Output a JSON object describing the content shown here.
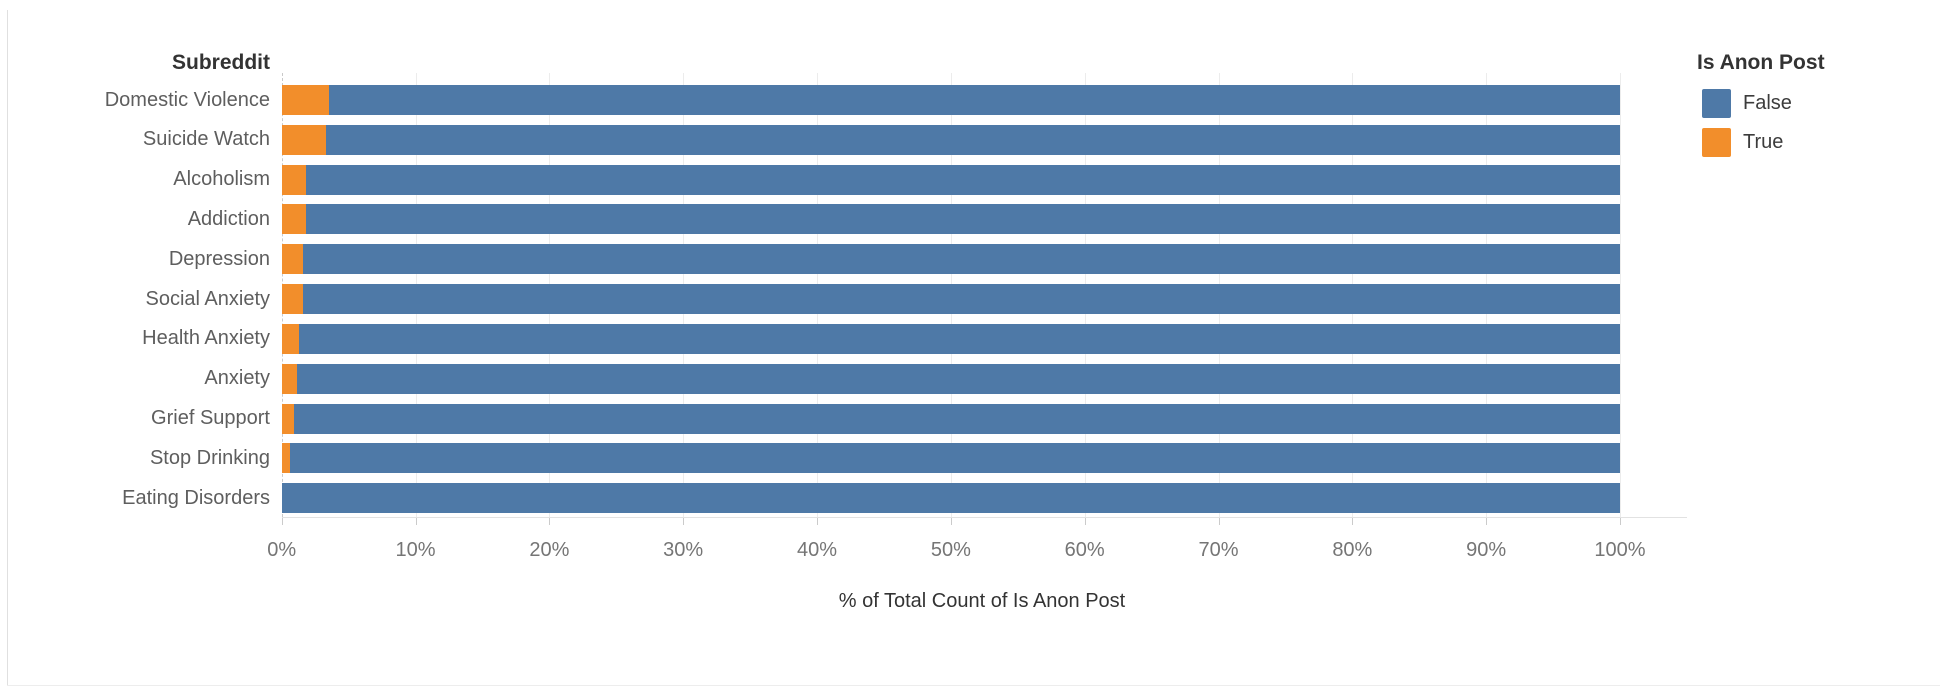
{
  "chart": {
    "header": "Subreddit",
    "axis_title": "% of Total Count of Is Anon Post",
    "x_ticks": [
      "0%",
      "10%",
      "20%",
      "30%",
      "40%",
      "50%",
      "60%",
      "70%",
      "80%",
      "90%",
      "100%"
    ],
    "legend": {
      "title": "Is Anon Post",
      "items": [
        {
          "label": "False",
          "color": "#4e79a7"
        },
        {
          "label": "True",
          "color": "#f28e2b"
        }
      ]
    },
    "background_color": "#ffffff"
  },
  "chart_data": {
    "type": "bar",
    "orientation": "horizontal",
    "stacked": true,
    "stack_order": [
      "True",
      "False"
    ],
    "title": "",
    "xlabel": "% of Total Count of Is Anon Post",
    "ylabel": "Subreddit",
    "xlim": [
      0,
      100
    ],
    "grid": true,
    "legend_position": "top-right",
    "categories": [
      "Domestic Violence",
      "Suicide Watch",
      "Alcoholism",
      "Addiction",
      "Depression",
      "Social Anxiety",
      "Health Anxiety",
      "Anxiety",
      "Grief Support",
      "Stop Drinking",
      "Eating Disorders"
    ],
    "series": [
      {
        "name": "True",
        "color": "#f28e2b",
        "values": [
          3.5,
          3.3,
          1.8,
          1.8,
          1.6,
          1.6,
          1.3,
          1.1,
          0.9,
          0.6,
          0.0
        ]
      },
      {
        "name": "False",
        "color": "#4e79a7",
        "values": [
          96.5,
          96.7,
          98.2,
          98.2,
          98.4,
          98.4,
          98.7,
          98.9,
          99.1,
          99.4,
          100.0
        ]
      }
    ]
  }
}
